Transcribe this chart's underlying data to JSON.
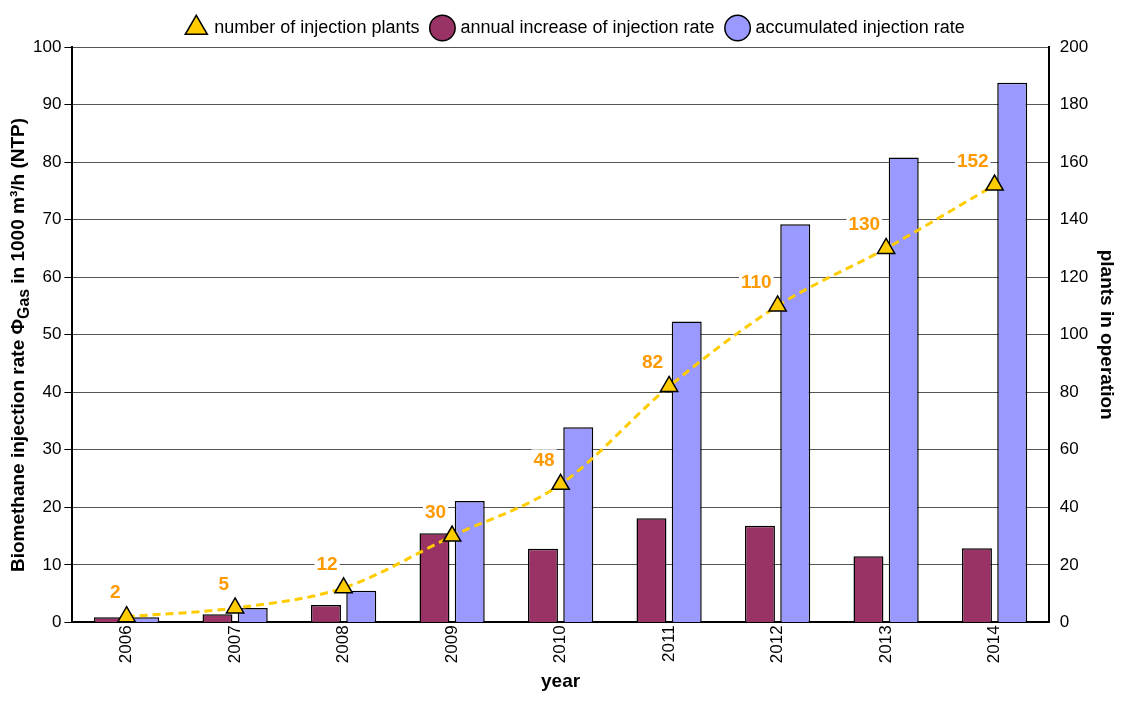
{
  "chart_data": {
    "type": "bar",
    "xlabel": "year",
    "ylabel": "Biomethane injection rate Φ$_{Gas}$ in 1000 m³/h (NTP)",
    "y2label": "plants in operation",
    "categories": [
      "2006",
      "2007",
      "2008",
      "2009",
      "2010",
      "2011",
      "2012",
      "2013",
      "2014"
    ],
    "series": [
      {
        "name": "annual increase of injection rate",
        "color": "#993366",
        "values": [
          0.9,
          1.4,
          3.0,
          15.5,
          12.8,
          18.1,
          16.8,
          11.5,
          12.9
        ]
      },
      {
        "name": "accumulated injection rate",
        "color": "#9999ff",
        "values": [
          0.9,
          2.5,
          5.5,
          21.1,
          33.9,
          52.3,
          69.2,
          80.8,
          93.8
        ]
      },
      {
        "name": "number of injection plants",
        "type": "line",
        "axis": "y2",
        "color": "#ffcc00",
        "marker": "triangle",
        "line_style": "dashed",
        "values": [
          2,
          5,
          12,
          30,
          48,
          82,
          110,
          130,
          152
        ],
        "value_labels": [
          "2",
          "5",
          "12",
          "30",
          "48",
          "82",
          "110",
          "130",
          "152"
        ]
      }
    ],
    "ylim": [
      0,
      100
    ],
    "yticks": [
      0,
      10,
      20,
      30,
      40,
      50,
      60,
      70,
      80,
      90,
      100
    ],
    "y2lim": [
      0,
      200
    ],
    "y2ticks": [
      0,
      20,
      40,
      60,
      80,
      100,
      120,
      140,
      160,
      180,
      200
    ],
    "grid": "y",
    "legend": "top"
  }
}
